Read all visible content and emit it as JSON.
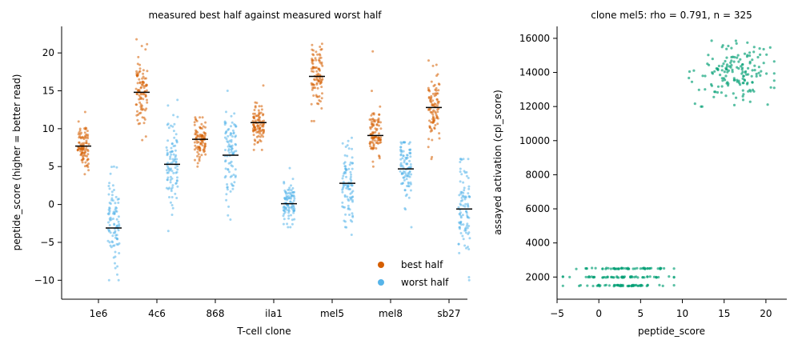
{
  "colors": {
    "best": "#d55e00",
    "worst": "#56b4e9",
    "scatter": "#009e73",
    "median": "#000000"
  },
  "chart_data": [
    {
      "type": "scatter",
      "title": "measured best half against measured worst half",
      "xlabel": "T-cell clone",
      "ylabel": "peptide_score  (higher = better read)",
      "categories": [
        "1e6",
        "4c6",
        "868",
        "ila1",
        "mel5",
        "mel8",
        "sb27"
      ],
      "ylim": [
        -12.5,
        23.5
      ],
      "yticks": [
        -10,
        -5,
        0,
        5,
        10,
        15,
        20
      ],
      "yticklabels": [
        "−10",
        "−5",
        "0",
        "5",
        "10",
        "15",
        "20"
      ],
      "legend_position": "lower-right",
      "series": [
        {
          "name": "best half",
          "medians": [
            7.7,
            14.8,
            8.6,
            10.8,
            16.9,
            9.1,
            12.8
          ],
          "ranges": [
            [
              4,
              12.2
            ],
            [
              8.5,
              21.8
            ],
            [
              5,
              11.5
            ],
            [
              7.2,
              15.7
            ],
            [
              11,
              21.2
            ],
            [
              5,
              20.2
            ],
            [
              6,
              19
            ]
          ],
          "spreads": [
            1.6,
            2.4,
            1.3,
            1.3,
            2.0,
            1.8,
            2.3
          ]
        },
        {
          "name": "worst half",
          "medians": [
            -3.1,
            5.3,
            6.5,
            0.1,
            2.8,
            4.7,
            -0.6
          ],
          "ranges": [
            [
              -10,
              5
            ],
            [
              -3.5,
              13.8
            ],
            [
              -2,
              15
            ],
            [
              -3,
              4.8
            ],
            [
              -4,
              8.8
            ],
            [
              -3,
              8.2
            ],
            [
              -10,
              6
            ]
          ],
          "spreads": [
            3.0,
            3.2,
            3.2,
            1.4,
            2.6,
            2.2,
            3.0
          ]
        }
      ]
    },
    {
      "type": "scatter",
      "title": "clone mel5: rho = 0.791, n = 325",
      "xlabel": "peptide_score",
      "ylabel": "assayed activation (cpl_score)",
      "xlim": [
        -5,
        22.5
      ],
      "ylim": [
        700,
        16700
      ],
      "xticks": [
        -5,
        0,
        5,
        10,
        15,
        20
      ],
      "xticklabels": [
        "−5",
        "0",
        "5",
        "10",
        "15",
        "20"
      ],
      "yticks": [
        2000,
        4000,
        6000,
        8000,
        10000,
        12000,
        14000,
        16000
      ],
      "yticklabels": [
        "2000",
        "4000",
        "6000",
        "8000",
        "10000",
        "12000",
        "14000",
        "16000"
      ],
      "points_summary": {
        "low_bands_y": [
          1500,
          2000,
          2500
        ],
        "low_band_x_range": [
          -4.3,
          9.0
        ],
        "high_cluster_x_range": [
          10.5,
          21.0
        ],
        "high_cluster_y_range": [
          12000,
          16000
        ],
        "high_cluster_center": [
          16.5,
          14000
        ]
      }
    }
  ]
}
